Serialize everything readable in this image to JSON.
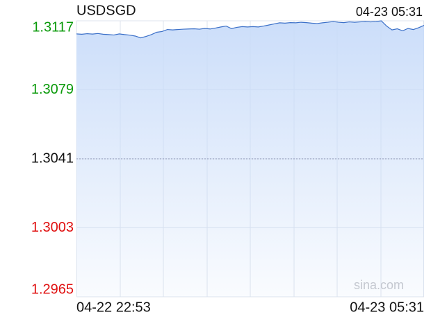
{
  "chart_data": {
    "type": "area",
    "title": "USDSGD",
    "subtitle": "04-23 05:31",
    "watermark": "sina.com",
    "categories": [
      "04-22 22:53",
      null,
      null,
      null,
      null,
      null,
      null,
      null,
      null,
      null,
      null,
      null,
      null,
      null,
      null,
      null,
      null,
      null,
      null,
      null,
      null,
      null,
      null,
      null,
      null,
      null,
      null,
      null,
      null,
      null,
      null,
      null,
      null,
      null,
      null,
      null,
      null,
      null,
      null,
      null,
      null,
      null,
      null,
      null,
      null,
      null,
      null,
      null,
      null,
      null,
      null,
      null,
      null,
      null,
      null,
      null,
      null,
      null,
      null,
      null,
      null,
      null,
      null,
      null,
      null,
      "04-23 05:31"
    ],
    "values": [
      1.31098,
      1.31096,
      1.31099,
      1.31097,
      1.311,
      1.31096,
      1.31094,
      1.31092,
      1.31098,
      1.31094,
      1.31091,
      1.31086,
      1.31076,
      1.31084,
      1.31094,
      1.31107,
      1.31111,
      1.31122,
      1.3112,
      1.31122,
      1.31124,
      1.31125,
      1.31126,
      1.31124,
      1.31128,
      1.31125,
      1.3113,
      1.31136,
      1.31141,
      1.31127,
      1.31134,
      1.31138,
      1.31136,
      1.31138,
      1.31136,
      1.31141,
      1.31147,
      1.31153,
      1.31159,
      1.31157,
      1.3116,
      1.31159,
      1.31162,
      1.3116,
      1.31157,
      1.31155,
      1.31159,
      1.31162,
      1.31166,
      1.31162,
      1.3116,
      1.31164,
      1.31162,
      1.31164,
      1.31166,
      1.31164,
      1.31166,
      1.3117,
      1.31141,
      1.3112,
      1.31126,
      1.31115,
      1.31128,
      1.31122,
      1.31132,
      1.31145
    ],
    "color": "#3a6fc8",
    "fill_color": "#c9dcf9",
    "ylim": [
      1.2965,
      1.3117
    ],
    "yticks": [
      1.3117,
      1.3079,
      1.3041,
      1.3003,
      1.2965
    ],
    "ytick_colors": [
      "#0a9a0a",
      "#0a9a0a",
      "#111111",
      "#e01010",
      "#e01010"
    ],
    "reference_line": 1.3041,
    "grid": true
  }
}
